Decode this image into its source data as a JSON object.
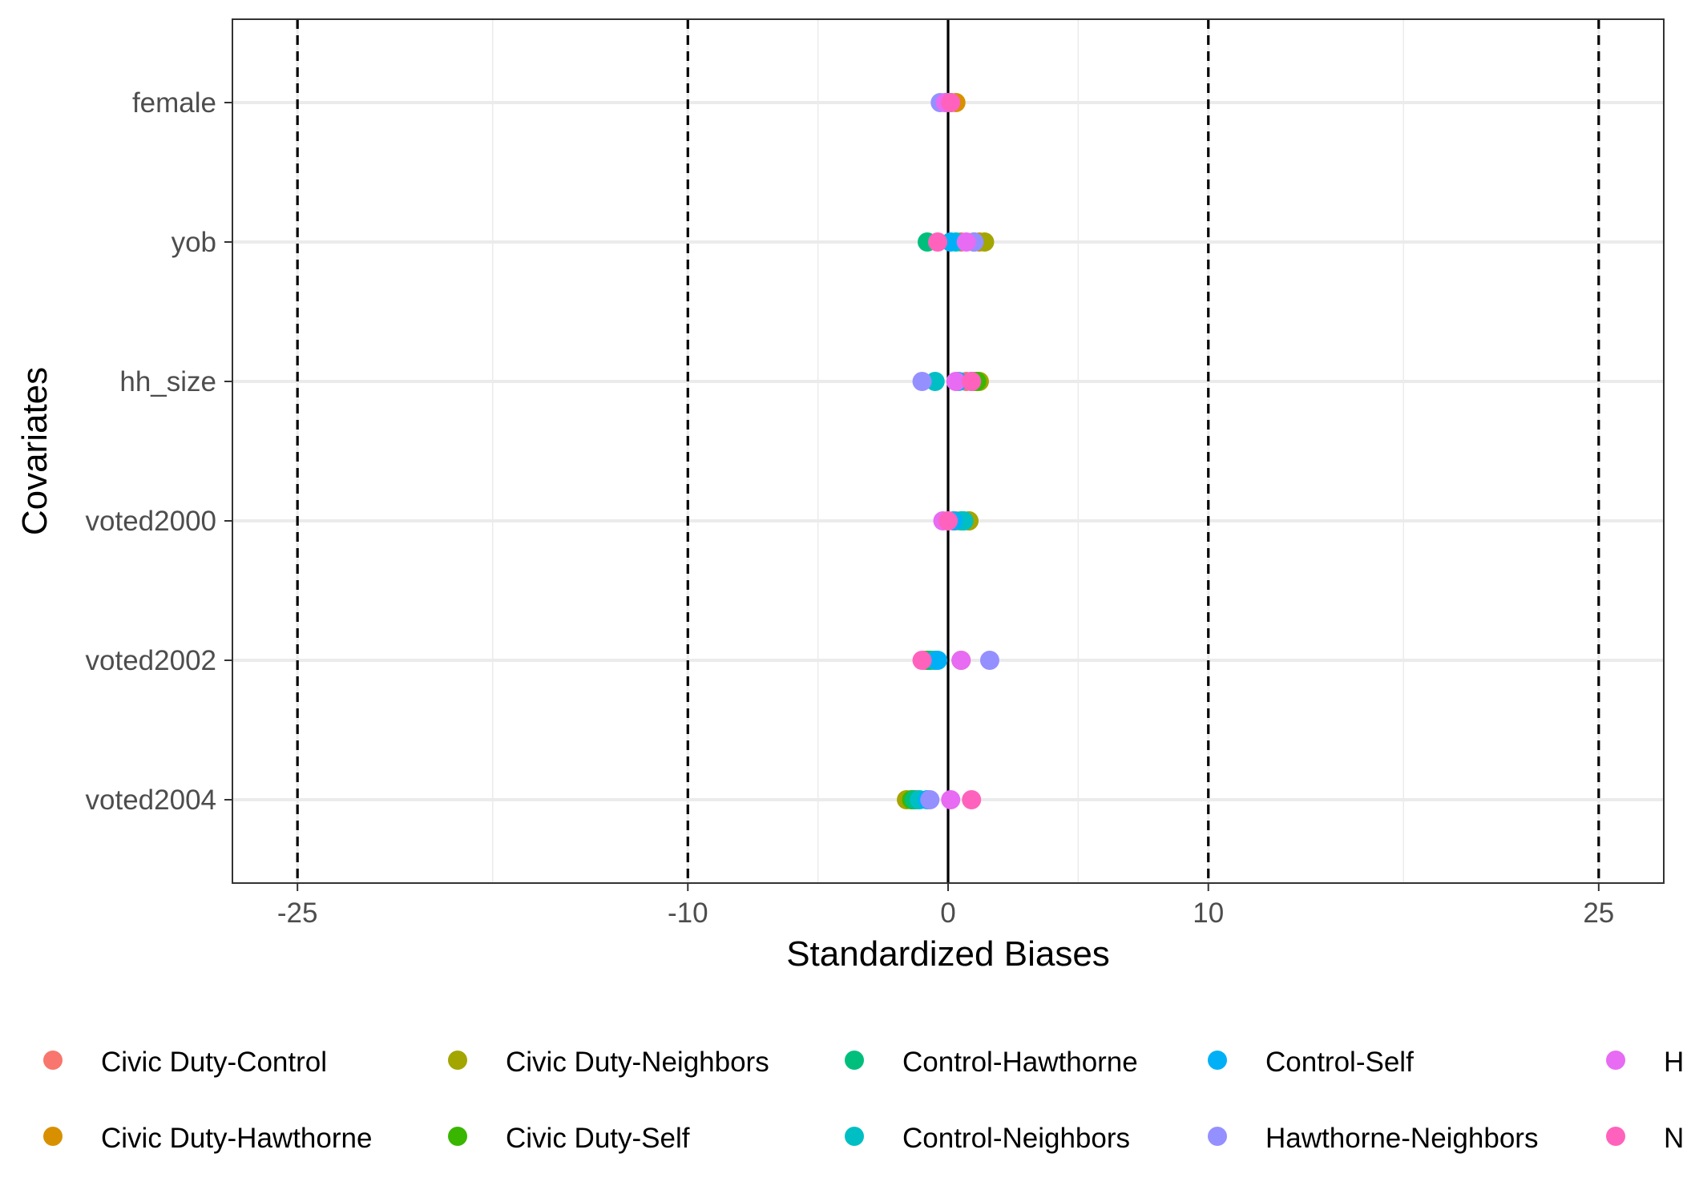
{
  "chart_data": {
    "type": "scatter",
    "xlabel": "Standardized Biases",
    "ylabel": "Covariates",
    "xlim": [
      -27.5,
      27.5
    ],
    "x_ticks": [
      -25,
      -10,
      0,
      10,
      25
    ],
    "x_tick_labels": [
      "-25",
      "-10",
      "0",
      "10",
      "25"
    ],
    "x_minor_gridlines": [
      -17.5,
      -5,
      5,
      17.5
    ],
    "reference_lines": {
      "solid": [
        0
      ],
      "dashed": [
        -25,
        -10,
        10,
        25
      ]
    },
    "categories": [
      "female",
      "yob",
      "hh_size",
      "voted2000",
      "voted2002",
      "voted2004"
    ],
    "grid": true,
    "legend_position": "bottom",
    "series": [
      {
        "name": "Civic Duty-Control",
        "color": "#F8766D",
        "values": [
          0.1,
          0.5,
          0.7,
          0.3,
          -0.9,
          -1.2
        ]
      },
      {
        "name": "Civic Duty-Hawthorne",
        "color": "#D89000",
        "values": [
          0.3,
          1.2,
          1.0,
          0.8,
          0.5,
          -1.4
        ]
      },
      {
        "name": "Civic Duty-Neighbors",
        "color": "#A3A500",
        "values": [
          0.1,
          1.4,
          1.2,
          0.8,
          -0.6,
          -1.6
        ]
      },
      {
        "name": "Civic Duty-Self",
        "color": "#39B600",
        "values": [
          0.0,
          1.0,
          1.1,
          0.6,
          -0.8,
          -1.4
        ]
      },
      {
        "name": "Control-Hawthorne",
        "color": "#00BF7D",
        "values": [
          0.0,
          -0.8,
          0.9,
          0.5,
          -0.7,
          -1.3
        ]
      },
      {
        "name": "Control-Neighbors",
        "color": "#00BFC4",
        "values": [
          0.0,
          0.3,
          -0.5,
          0.6,
          -0.5,
          -1.1
        ]
      },
      {
        "name": "Control-Self",
        "color": "#00B0F6",
        "values": [
          -0.1,
          0.1,
          0.4,
          0.2,
          -0.4,
          -0.8
        ]
      },
      {
        "name": "Hawthorne-Neighbors",
        "color": "#9590FF",
        "values": [
          -0.3,
          1.0,
          -1.0,
          0.0,
          1.6,
          -0.7
        ]
      },
      {
        "name": "Hawthorne-Self",
        "color": "#E76BF3",
        "values": [
          -0.1,
          0.7,
          0.3,
          -0.2,
          0.5,
          0.1
        ]
      },
      {
        "name": "Neighbors-Self",
        "color": "#FF62BC",
        "values": [
          0.1,
          -0.4,
          0.9,
          0.0,
          -1.0,
          0.9
        ]
      }
    ]
  }
}
